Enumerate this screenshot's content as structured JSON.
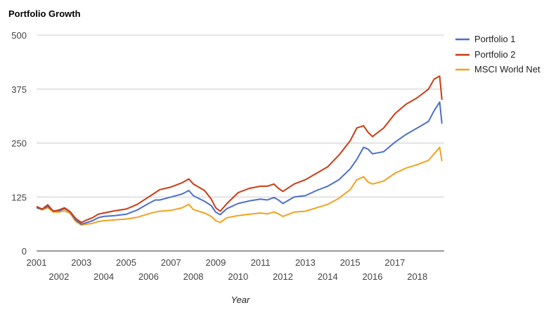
{
  "colors": {
    "portfolio_1": "#4a6fcb",
    "portfolio_2": "#cc3b12",
    "msci_world_net": "#f2a11e",
    "grid": "#cccccc",
    "baseline": "#333333"
  },
  "chart_data": {
    "type": "line",
    "title": "Portfolio Growth",
    "xlabel": "Year",
    "ylabel": "",
    "xlim": [
      2001,
      2019.2
    ],
    "ylim": [
      0,
      500
    ],
    "yticks": [
      0,
      125,
      250,
      375,
      500
    ],
    "ytick_labels": [
      "0",
      "125",
      "250",
      "375",
      "500"
    ],
    "xticks_top": [
      2001,
      2003,
      2005,
      2007,
      2009,
      2011,
      2013,
      2015,
      2017
    ],
    "xticks_top_labels": [
      "2001",
      "2003",
      "2005",
      "2007",
      "2009",
      "2011",
      "2013",
      "2015",
      "2017"
    ],
    "xticks_bottom": [
      2002,
      2004,
      2006,
      2008,
      2010,
      2012,
      2014,
      2016,
      2018
    ],
    "xticks_bottom_labels": [
      "2002",
      "2004",
      "2006",
      "2008",
      "2010",
      "2012",
      "2014",
      "2016",
      "2018"
    ],
    "grid": true,
    "legend_position": "right",
    "series": [
      {
        "name": "Portfolio 1",
        "x": [
          2001.0,
          2001.25,
          2001.5,
          2001.75,
          2002.0,
          2002.25,
          2002.5,
          2002.75,
          2003.0,
          2003.25,
          2003.5,
          2003.75,
          2004.0,
          2004.5,
          2005.0,
          2005.5,
          2006.0,
          2006.3,
          2006.5,
          2007.0,
          2007.5,
          2007.8,
          2008.0,
          2008.5,
          2008.8,
          2009.0,
          2009.2,
          2009.5,
          2010.0,
          2010.5,
          2011.0,
          2011.3,
          2011.6,
          2011.8,
          2012.0,
          2012.5,
          2013.0,
          2013.5,
          2014.0,
          2014.5,
          2015.0,
          2015.3,
          2015.6,
          2015.8,
          2016.0,
          2016.5,
          2017.0,
          2017.5,
          2018.0,
          2018.5,
          2018.75,
          2019.0,
          2019.1
        ],
        "values": [
          100,
          97,
          103,
          93,
          93,
          98,
          90,
          72,
          62,
          66,
          70,
          77,
          80,
          82,
          85,
          95,
          110,
          118,
          118,
          125,
          132,
          140,
          128,
          115,
          105,
          90,
          84,
          98,
          110,
          116,
          120,
          118,
          124,
          118,
          110,
          125,
          128,
          140,
          150,
          165,
          190,
          212,
          240,
          236,
          225,
          230,
          252,
          270,
          285,
          300,
          325,
          345,
          295
        ]
      },
      {
        "name": "Portfolio 2",
        "x": [
          2001.0,
          2001.25,
          2001.5,
          2001.75,
          2002.0,
          2002.25,
          2002.5,
          2002.75,
          2003.0,
          2003.25,
          2003.5,
          2003.75,
          2004.0,
          2004.5,
          2005.0,
          2005.5,
          2006.0,
          2006.3,
          2006.5,
          2007.0,
          2007.5,
          2007.8,
          2008.0,
          2008.5,
          2008.8,
          2009.0,
          2009.2,
          2009.5,
          2010.0,
          2010.5,
          2011.0,
          2011.3,
          2011.6,
          2011.8,
          2012.0,
          2012.5,
          2013.0,
          2013.5,
          2014.0,
          2014.5,
          2015.0,
          2015.3,
          2015.6,
          2015.8,
          2016.0,
          2016.5,
          2017.0,
          2017.5,
          2018.0,
          2018.5,
          2018.75,
          2019.0,
          2019.1
        ],
        "values": [
          103,
          97,
          107,
          92,
          95,
          100,
          91,
          75,
          66,
          72,
          77,
          85,
          88,
          93,
          97,
          108,
          125,
          135,
          142,
          148,
          158,
          167,
          155,
          140,
          120,
          100,
          92,
          110,
          135,
          145,
          150,
          150,
          155,
          145,
          138,
          155,
          165,
          180,
          195,
          222,
          255,
          285,
          290,
          275,
          265,
          285,
          318,
          340,
          355,
          375,
          398,
          405,
          350
        ]
      },
      {
        "name": "MSCI World Net",
        "x": [
          2001.0,
          2001.25,
          2001.5,
          2001.75,
          2002.0,
          2002.25,
          2002.5,
          2002.75,
          2003.0,
          2003.25,
          2003.5,
          2003.75,
          2004.0,
          2004.5,
          2005.0,
          2005.5,
          2006.0,
          2006.3,
          2006.5,
          2007.0,
          2007.5,
          2007.8,
          2008.0,
          2008.5,
          2008.8,
          2009.0,
          2009.2,
          2009.5,
          2010.0,
          2010.5,
          2011.0,
          2011.3,
          2011.6,
          2011.8,
          2012.0,
          2012.5,
          2013.0,
          2013.5,
          2014.0,
          2014.5,
          2015.0,
          2015.3,
          2015.6,
          2015.8,
          2016.0,
          2016.5,
          2017.0,
          2017.5,
          2018.0,
          2018.5,
          2018.75,
          2019.0,
          2019.1
        ],
        "values": [
          100,
          95,
          100,
          90,
          90,
          93,
          87,
          68,
          60,
          62,
          64,
          68,
          70,
          72,
          74,
          78,
          86,
          90,
          92,
          94,
          100,
          108,
          96,
          88,
          80,
          70,
          66,
          77,
          82,
          85,
          88,
          86,
          90,
          86,
          80,
          90,
          92,
          100,
          108,
          122,
          142,
          165,
          172,
          160,
          155,
          162,
          180,
          192,
          200,
          210,
          225,
          240,
          208
        ]
      }
    ]
  }
}
